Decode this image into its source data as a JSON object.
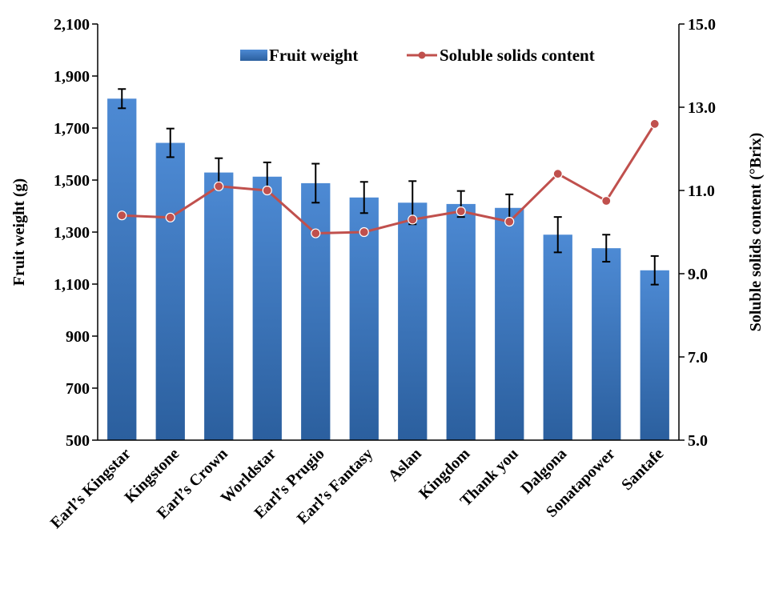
{
  "chart_data": {
    "type": "bar+line",
    "categories": [
      "Earl’s Kingstar",
      "Kingstone",
      "Earl’s Crown",
      "Worldstar",
      "Earl’s Prugio",
      "Earl’s Fantasy",
      "Aslan",
      "Kingdom",
      "Thank you",
      "Dalgona",
      "Sonatapower",
      "Santafe"
    ],
    "series": [
      {
        "name": "Fruit weight",
        "kind": "bar",
        "axis": "left",
        "color": "#3a77c2",
        "values": [
          1813,
          1643,
          1529,
          1513,
          1488,
          1433,
          1413,
          1408,
          1393,
          1290,
          1238,
          1153
        ],
        "error": [
          37,
          55,
          55,
          55,
          75,
          60,
          83,
          50,
          52,
          68,
          52,
          55
        ]
      },
      {
        "name": "Soluble solids content",
        "kind": "line",
        "axis": "right",
        "color": "#c0504d",
        "values": [
          10.4,
          10.35,
          11.1,
          11.0,
          9.97,
          10.0,
          10.3,
          10.5,
          10.25,
          11.4,
          10.75,
          12.6
        ]
      }
    ],
    "ylabel": "Fruit weight (g)",
    "y2label": "Soluble solids content (°Brix)",
    "ylim": [
      500,
      2100
    ],
    "y2lim": [
      5.0,
      15.0
    ],
    "yticks": [
      "500",
      "700",
      "900",
      "1,100",
      "1,300",
      "1,500",
      "1,700",
      "1,900",
      "2,100"
    ],
    "y2ticks": [
      "5.0",
      "7.0",
      "9.0",
      "11.0",
      "13.0",
      "15.0"
    ],
    "legend_position": "top",
    "grid": false
  }
}
